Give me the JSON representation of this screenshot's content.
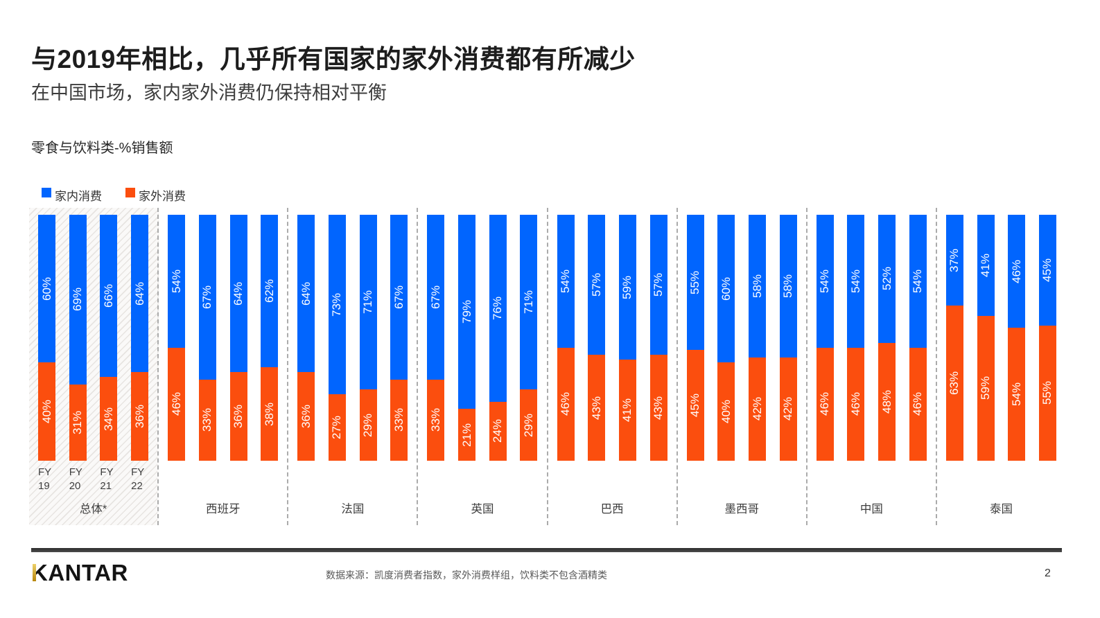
{
  "page": {
    "title": "与2019年相比，几乎所有国家的家外消费都有所减少",
    "subtitle": "在中国市场，家内家外消费仍保持相对平衡",
    "chart_label": "零食与饮料类-%销售额",
    "source": "数据来源：凯度消费者指数，家外消费样组，饮料类不包含酒精类",
    "logo": "KANTAR",
    "page_number": "2"
  },
  "legend": [
    {
      "label": "家内消费",
      "color": "#0165fe"
    },
    {
      "label": "家外消费",
      "color": "#fb4e0e"
    }
  ],
  "colors": {
    "in_home": "#0165fe",
    "out_home": "#fb4e0e",
    "separator": "#ababab",
    "logo_gold": "#c9992c"
  },
  "chart_data": {
    "type": "bar",
    "stacked": true,
    "unit": "%",
    "title": "零食与饮料类-%销售额",
    "ylim": [
      0,
      100
    ],
    "grid": false,
    "legend_position": "top-left",
    "series_names": [
      "家内消费",
      "家外消费"
    ],
    "year_labels": [
      "FY\n19",
      "FY\n20",
      "FY\n21",
      "FY\n22"
    ],
    "groups": [
      {
        "label": "总体*",
        "highlighted": true,
        "in_home": [
          60,
          69,
          66,
          64
        ],
        "out_home": [
          40,
          31,
          34,
          36
        ]
      },
      {
        "label": "西班牙",
        "highlighted": false,
        "in_home": [
          54,
          67,
          64,
          62
        ],
        "out_home": [
          46,
          33,
          36,
          38
        ]
      },
      {
        "label": "法国",
        "highlighted": false,
        "in_home": [
          64,
          73,
          71,
          67
        ],
        "out_home": [
          36,
          27,
          29,
          33
        ]
      },
      {
        "label": "英国",
        "highlighted": false,
        "in_home": [
          67,
          79,
          76,
          71
        ],
        "out_home": [
          33,
          21,
          24,
          29
        ]
      },
      {
        "label": "巴西",
        "highlighted": false,
        "in_home": [
          54,
          57,
          59,
          57
        ],
        "out_home": [
          46,
          43,
          41,
          43
        ]
      },
      {
        "label": "墨西哥",
        "highlighted": false,
        "in_home": [
          55,
          60,
          58,
          58
        ],
        "out_home": [
          45,
          40,
          42,
          42
        ]
      },
      {
        "label": "中国",
        "highlighted": false,
        "in_home": [
          54,
          54,
          52,
          54
        ],
        "out_home": [
          46,
          46,
          48,
          46
        ]
      },
      {
        "label": "泰国",
        "highlighted": false,
        "in_home": [
          37,
          41,
          46,
          45
        ],
        "out_home": [
          63,
          59,
          54,
          55
        ]
      }
    ]
  }
}
